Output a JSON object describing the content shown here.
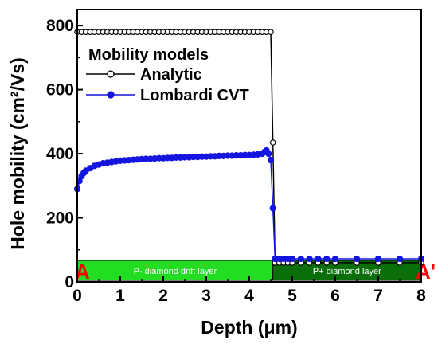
{
  "chart_data": {
    "type": "line",
    "xlabel": "Depth (μm)",
    "ylabel": "Hole mobility (cm²/Vs)",
    "xlim": [
      0,
      8
    ],
    "ylim": [
      0,
      850
    ],
    "x_ticks": [
      "0",
      "1",
      "2",
      "3",
      "4",
      "5",
      "6",
      "7",
      "8"
    ],
    "y_ticks": [
      "0",
      "200",
      "400",
      "600",
      "800"
    ],
    "legend": {
      "title": "Mobility models",
      "placement": "top-left"
    },
    "series": [
      {
        "name": "Analytic",
        "marker": "open-circle",
        "color": "#000000",
        "x": [
          0,
          0.1,
          0.2,
          0.3,
          0.4,
          0.5,
          0.6,
          0.7,
          0.8,
          0.9,
          1.0,
          1.1,
          1.2,
          1.3,
          1.4,
          1.5,
          1.6,
          1.7,
          1.8,
          1.9,
          2.0,
          2.1,
          2.2,
          2.3,
          2.4,
          2.5,
          2.6,
          2.7,
          2.8,
          2.9,
          3.0,
          3.1,
          3.2,
          3.3,
          3.4,
          3.5,
          3.6,
          3.7,
          3.8,
          3.9,
          4.0,
          4.1,
          4.2,
          4.3,
          4.4,
          4.5,
          4.55,
          4.6,
          4.7,
          4.8,
          4.9,
          5.0,
          5.2,
          5.4,
          5.6,
          5.8,
          6.0,
          6.5,
          7.0,
          7.5,
          8.0
        ],
        "y": [
          780,
          780,
          780,
          780,
          780,
          780,
          780,
          780,
          780,
          780,
          780,
          780,
          780,
          780,
          780,
          780,
          780,
          780,
          780,
          780,
          780,
          780,
          780,
          780,
          780,
          780,
          780,
          780,
          780,
          780,
          780,
          780,
          780,
          780,
          780,
          780,
          780,
          780,
          780,
          780,
          780,
          780,
          780,
          780,
          780,
          780,
          435,
          60,
          60,
          60,
          60,
          60,
          60,
          60,
          60,
          60,
          60,
          60,
          60,
          60,
          60
        ]
      },
      {
        "name": "Lombardi CVT",
        "marker": "filled-circle",
        "color": "#1515e0",
        "x": [
          0,
          0.05,
          0.1,
          0.15,
          0.2,
          0.3,
          0.4,
          0.5,
          0.6,
          0.7,
          0.8,
          0.9,
          1.0,
          1.1,
          1.2,
          1.3,
          1.4,
          1.5,
          1.6,
          1.7,
          1.8,
          1.9,
          2.0,
          2.1,
          2.2,
          2.3,
          2.4,
          2.5,
          2.6,
          2.7,
          2.8,
          2.9,
          3.0,
          3.1,
          3.2,
          3.3,
          3.4,
          3.5,
          3.6,
          3.7,
          3.8,
          3.9,
          4.0,
          4.1,
          4.2,
          4.3,
          4.35,
          4.4,
          4.45,
          4.5,
          4.55,
          4.6,
          4.7,
          4.8,
          4.9,
          5.0,
          5.2,
          5.4,
          5.6,
          5.8,
          6.0,
          6.5,
          7.0,
          7.5,
          8.0
        ],
        "y": [
          290,
          315,
          330,
          340,
          347,
          355,
          362,
          366,
          370,
          372,
          374,
          376,
          378,
          379,
          380,
          381,
          382,
          383,
          384,
          384,
          385,
          386,
          386,
          387,
          387,
          388,
          388,
          389,
          389,
          390,
          390,
          391,
          391,
          392,
          392,
          393,
          393,
          394,
          394,
          395,
          395,
          396,
          396,
          397,
          398,
          400,
          405,
          410,
          400,
          380,
          230,
          72,
          72,
          72,
          72,
          72,
          72,
          72,
          72,
          72,
          72,
          72,
          72,
          72,
          72
        ]
      }
    ],
    "regions": [
      {
        "label": "P- diamond drift layer",
        "x_start": 0,
        "x_end": 4.55,
        "color": "#22dd22"
      },
      {
        "label": "P+ diamond layer",
        "x_start": 4.55,
        "x_end": 8,
        "color": "#0a6e0a"
      }
    ],
    "point_labels": [
      {
        "label": "A",
        "x": 0,
        "color": "#ff0000"
      },
      {
        "label": "A'",
        "x": 8,
        "color": "#ff0000"
      }
    ]
  }
}
